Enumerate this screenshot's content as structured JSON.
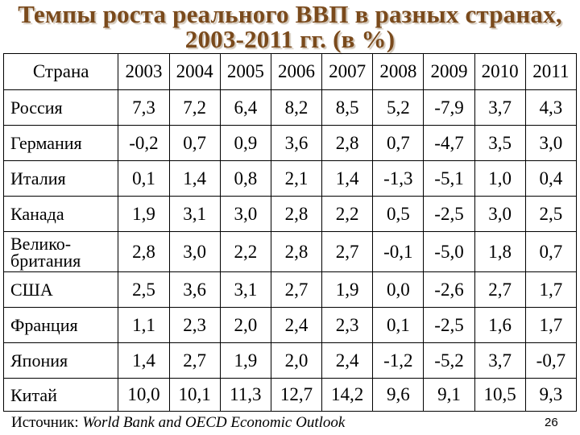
{
  "title": {
    "line1": "Темпы роста реального ВВП в разных странах,",
    "line2": "2003-2011 гг. (в %)"
  },
  "table": {
    "country_header": "Страна",
    "years": [
      "2003",
      "2004",
      "2005",
      "2006",
      "2007",
      "2008",
      "2009",
      "2010",
      "2011"
    ],
    "rows": [
      {
        "country": "Россия",
        "values": [
          "7,3",
          "7,2",
          "6,4",
          "8,2",
          "8,5",
          "5,2",
          "-7,9",
          "3,7",
          "4,3"
        ]
      },
      {
        "country": "Германия",
        "values": [
          "-0,2",
          "0,7",
          "0,9",
          "3,6",
          "2,8",
          "0,7",
          "-4,7",
          "3,5",
          "3,0"
        ]
      },
      {
        "country": "Италия",
        "values": [
          "0,1",
          "1,4",
          "0,8",
          "2,1",
          "1,4",
          "-1,3",
          "-5,1",
          "1,0",
          "0,4"
        ]
      },
      {
        "country": "Канада",
        "values": [
          "1,9",
          "3,1",
          "3,0",
          "2,8",
          "2,2",
          "0,5",
          "-2,5",
          "3,0",
          "2,5"
        ]
      },
      {
        "country": "Велико-британия",
        "values": [
          "2,8",
          "3,0",
          "2,2",
          "2,8",
          "2,7",
          "-0,1",
          "-5,0",
          "1,8",
          "0,7"
        ]
      },
      {
        "country": "США",
        "values": [
          "2,5",
          "3,6",
          "3,1",
          "2,7",
          "1,9",
          "0,0",
          "-2,6",
          "2,7",
          "1,7"
        ]
      },
      {
        "country": "Франция",
        "values": [
          "1,1",
          "2,3",
          "2,0",
          "2,4",
          "2,3",
          "0,1",
          "-2,5",
          "1,6",
          "1,7"
        ]
      },
      {
        "country": "Япония",
        "values": [
          "1,4",
          "2,7",
          "1,9",
          "2,0",
          "2,4",
          "-1,2",
          "-5,2",
          "3,7",
          "-0,7"
        ]
      },
      {
        "country": "Китай",
        "values": [
          "10,0",
          "10,1",
          "11,3",
          "12,7",
          "14,2",
          "9,6",
          "9,1",
          "10,5",
          "9,3"
        ]
      }
    ]
  },
  "source": {
    "label": "Источник:",
    "name": "World Bank and OECD Economic Outlook"
  },
  "page_number": "26",
  "colors": {
    "title": "#7a4a1c",
    "grid": "#000000",
    "text": "#000000",
    "background": "#ffffff"
  }
}
